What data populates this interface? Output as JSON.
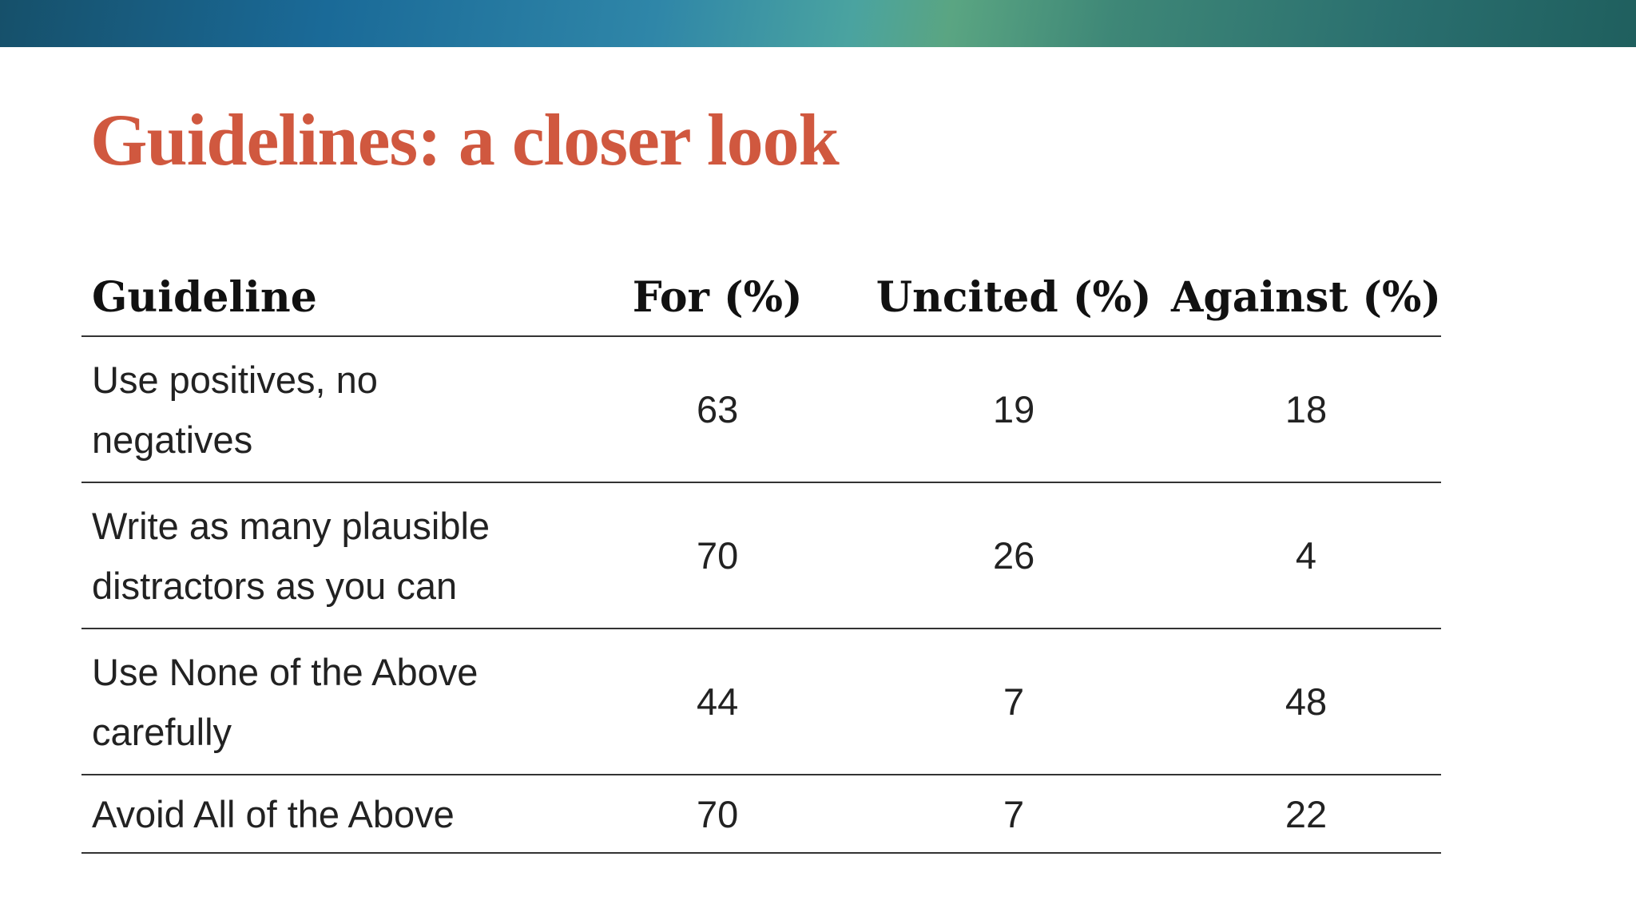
{
  "header": {
    "title": "Guidelines: a closer look"
  },
  "table": {
    "columns": [
      "Guideline",
      "For (%)",
      "Uncited (%)",
      "Against (%)"
    ],
    "rows": [
      [
        "Use positives, no negatives",
        63,
        19,
        18
      ],
      [
        "Write as many plausible distractors as you can",
        70,
        26,
        4
      ],
      [
        "Use None of the Above carefully",
        44,
        7,
        48
      ],
      [
        "Avoid All of the Above",
        70,
        7,
        22
      ]
    ]
  }
}
